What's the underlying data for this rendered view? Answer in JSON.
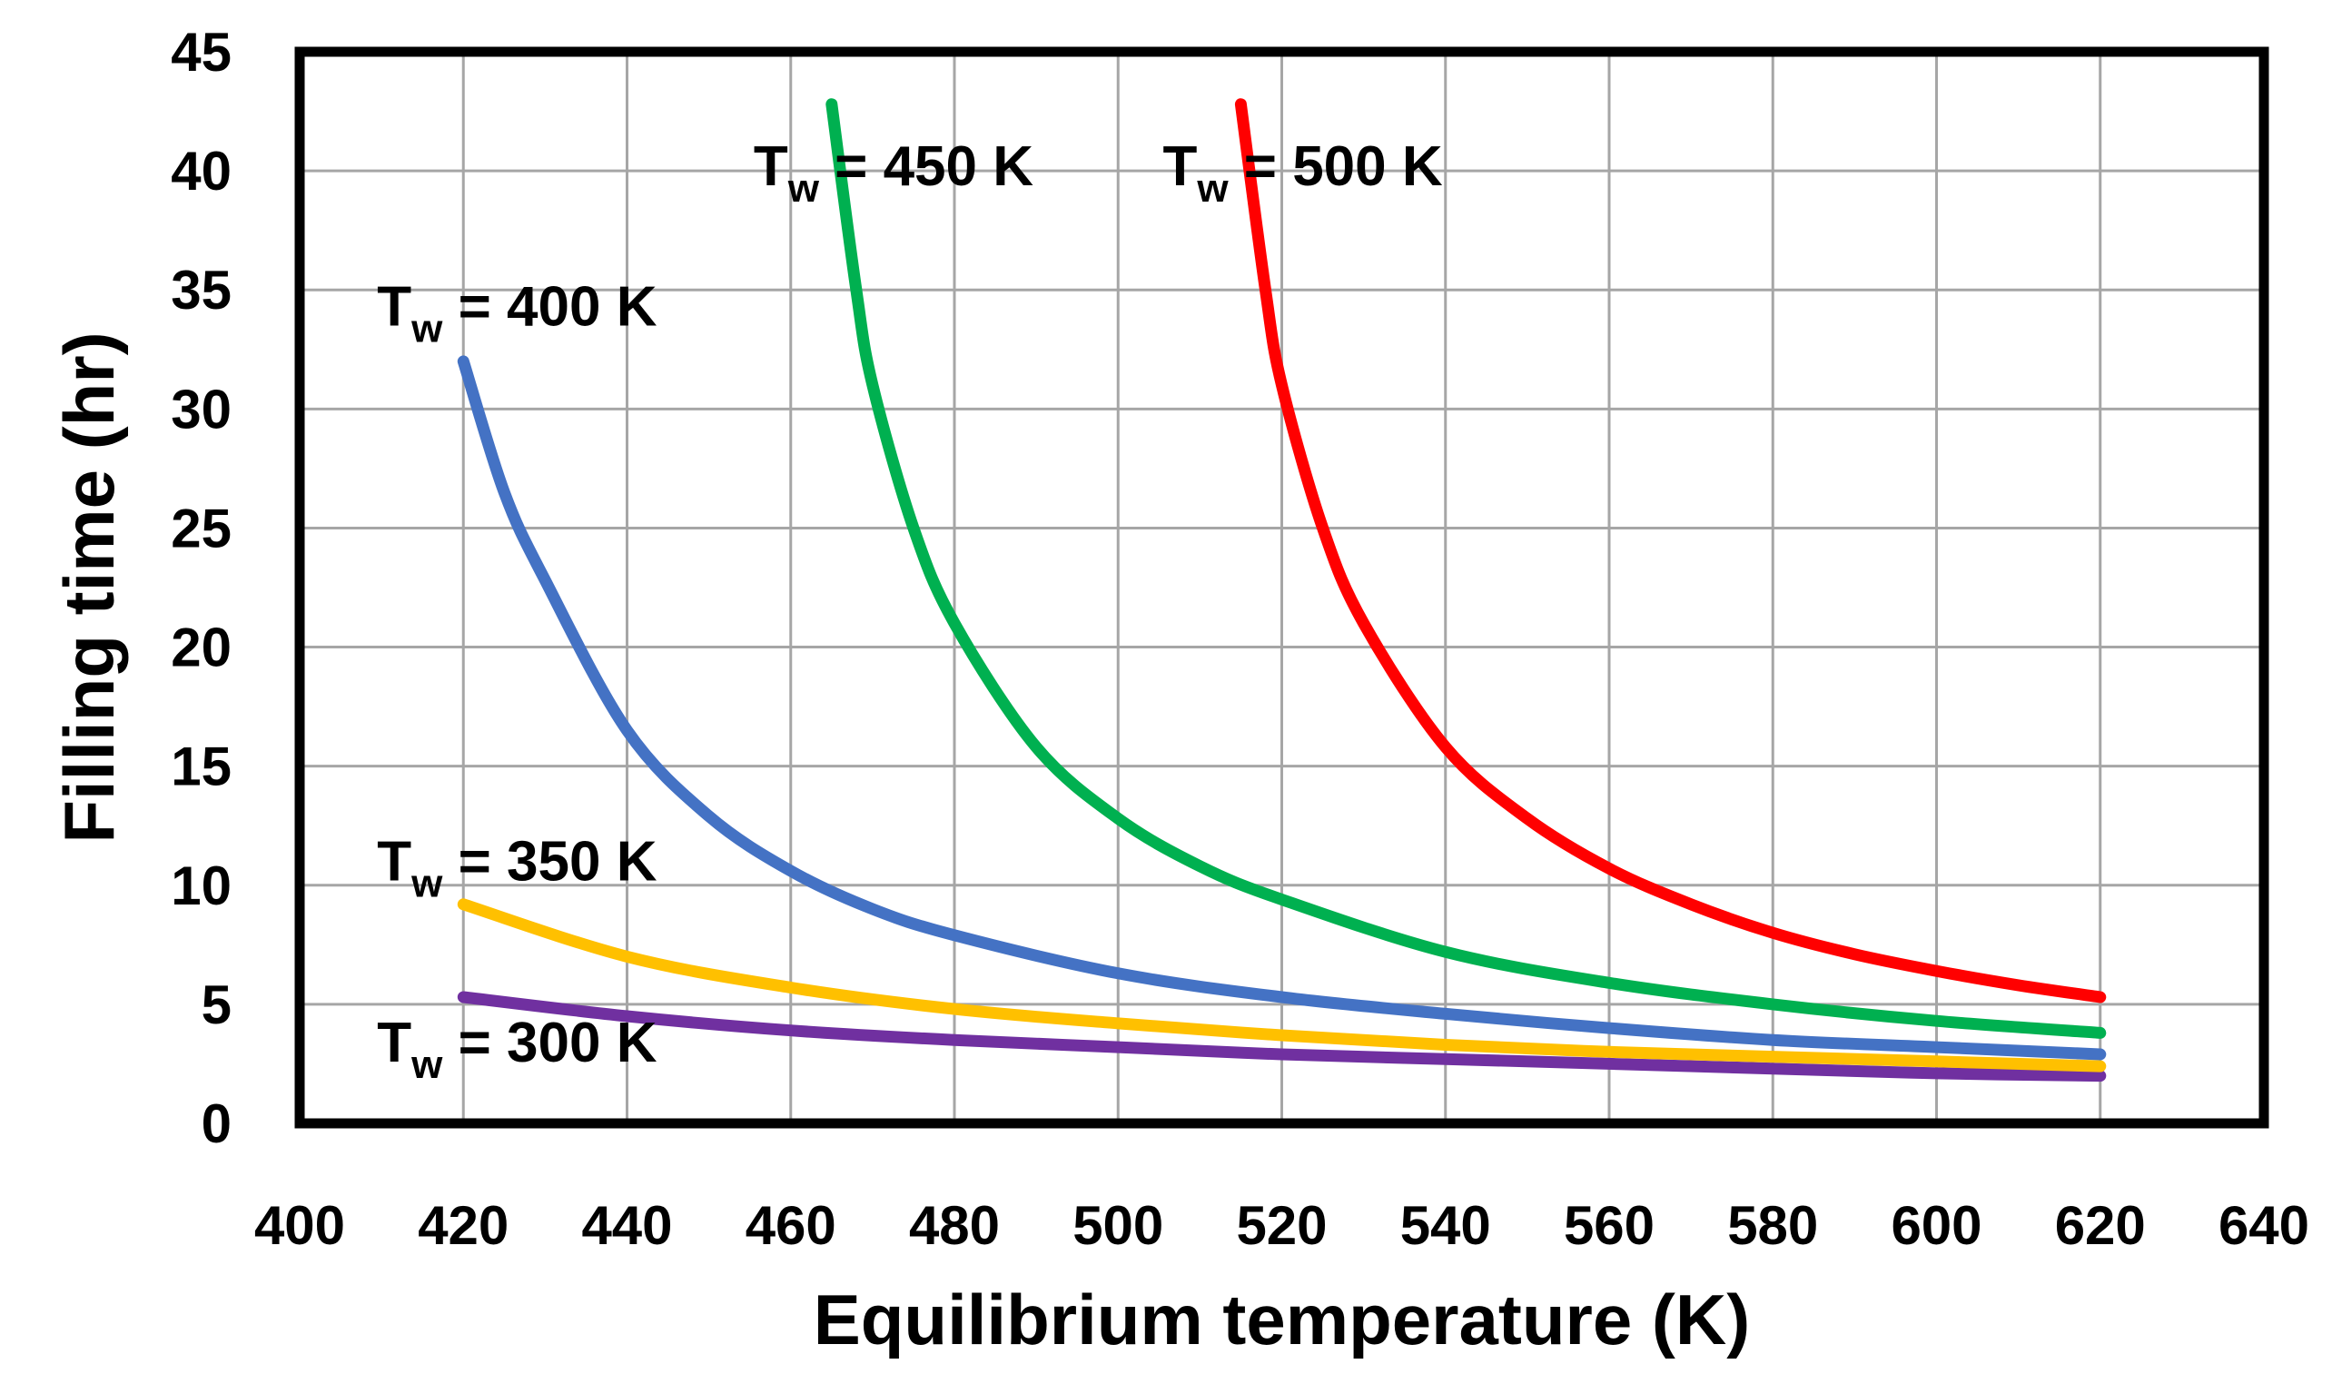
{
  "chart_data": {
    "type": "line",
    "title": "",
    "xlabel": "Equilibrium temperature (K)",
    "ylabel": "Filling time (hr)",
    "xlim": [
      400,
      640
    ],
    "ylim": [
      0,
      45
    ],
    "xticks": [
      400,
      420,
      440,
      460,
      480,
      500,
      520,
      540,
      560,
      580,
      600,
      620,
      640
    ],
    "yticks": [
      0,
      5,
      10,
      15,
      20,
      25,
      30,
      35,
      40,
      45
    ],
    "grid": true,
    "legend": "inline labels",
    "series": [
      {
        "name": "T_w = 300 K",
        "label_main": "T",
        "label_sub": "w",
        "label_rest": " = 300 K",
        "color": "#7030a0",
        "x": [
          420,
          440,
          460,
          480,
          500,
          520,
          540,
          560,
          580,
          600,
          620
        ],
        "y": [
          5.3,
          4.5,
          3.9,
          3.5,
          3.2,
          2.9,
          2.7,
          2.5,
          2.3,
          2.1,
          2.0
        ]
      },
      {
        "name": "T_w = 350 K",
        "label_main": "T",
        "label_sub": "w",
        "label_rest": " = 350 K",
        "color": "#ffc000",
        "x": [
          420,
          440,
          460,
          480,
          500,
          520,
          540,
          560,
          580,
          600,
          620
        ],
        "y": [
          9.2,
          7.0,
          5.7,
          4.8,
          4.2,
          3.7,
          3.3,
          3.0,
          2.8,
          2.6,
          2.4
        ]
      },
      {
        "name": "T_w = 400 K",
        "label_main": "T",
        "label_sub": "w",
        "label_rest": " = 400 K",
        "color": "#4472c4",
        "x": [
          420,
          425,
          430,
          440,
          450,
          460,
          470,
          480,
          500,
          520,
          540,
          560,
          580,
          600,
          620
        ],
        "y": [
          32.0,
          26.5,
          22.8,
          16.5,
          12.9,
          10.6,
          9.0,
          7.9,
          6.3,
          5.3,
          4.6,
          4.0,
          3.5,
          3.2,
          2.9
        ]
      },
      {
        "name": "T_w = 450 K",
        "label_main": "T",
        "label_sub": "w",
        "label_rest": " = 450 K",
        "color": "#00b050",
        "x": [
          465,
          468,
          470,
          475,
          480,
          490,
          500,
          510,
          520,
          540,
          560,
          580,
          600,
          620
        ],
        "y": [
          42.8,
          35.0,
          31.0,
          25.0,
          21.0,
          15.8,
          12.8,
          10.8,
          9.4,
          7.2,
          5.9,
          5.0,
          4.3,
          3.8
        ]
      },
      {
        "name": "T_w = 500 K",
        "label_main": "T",
        "label_sub": "w",
        "label_rest": " = 500 K",
        "color": "#ff0000",
        "x": [
          515,
          518,
          520,
          525,
          530,
          540,
          550,
          560,
          570,
          580,
          590,
          600,
          610,
          620
        ],
        "y": [
          42.8,
          35.0,
          31.0,
          25.0,
          21.0,
          15.8,
          12.8,
          10.7,
          9.2,
          8.0,
          7.1,
          6.4,
          5.8,
          5.3
        ]
      }
    ],
    "annotations": [
      {
        "series": 0,
        "x": 420,
        "y": 2.6
      },
      {
        "series": 1,
        "x": 420,
        "y": 10.2
      },
      {
        "series": 2,
        "x": 420,
        "y": 33.5
      },
      {
        "series": 3,
        "x": 466,
        "y": 39.4
      },
      {
        "series": 4,
        "x": 516,
        "y": 39.4
      }
    ]
  }
}
